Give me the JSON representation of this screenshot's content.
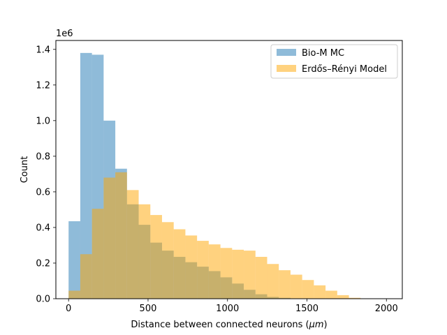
{
  "chart_data": {
    "type": "histogram",
    "title": "",
    "xlabel": "Distance between connected neurons (",
    "xlabel_mu": "μm",
    "xlabel_close": ")",
    "ylabel": "Count",
    "y_offset_label": "1e6",
    "xlim": [
      -80,
      2100
    ],
    "ylim": [
      0,
      1.45
    ],
    "x_ticks": [
      0,
      500,
      1000,
      1500,
      2000
    ],
    "x_tick_labels": [
      "0",
      "500",
      "1000",
      "1500",
      "2000"
    ],
    "y_ticks": [
      0.0,
      0.2,
      0.4,
      0.6,
      0.8,
      1.0,
      1.2,
      1.4
    ],
    "y_tick_labels": [
      "0.0",
      "0.2",
      "0.4",
      "0.6",
      "0.8",
      "1.0",
      "1.2",
      "1.4"
    ],
    "grid": false,
    "legend_position": "top-right",
    "series": [
      {
        "name": "Bio-M MC",
        "color": "#1f77b4",
        "alpha": 0.5,
        "bin_start": 0,
        "bin_width": 73.5,
        "values": [
          0.435,
          1.38,
          1.37,
          1.0,
          0.73,
          0.53,
          0.415,
          0.315,
          0.27,
          0.235,
          0.205,
          0.18,
          0.155,
          0.12,
          0.085,
          0.05,
          0.025,
          0.01,
          0.005,
          0.002,
          0.001,
          0.001,
          0.0005,
          0.0005,
          0.0002,
          0.0002,
          0.0001,
          0.0001,
          0.0001
        ]
      },
      {
        "name": "Erdős–Rényi Model",
        "color": "#ffa500",
        "alpha": 0.5,
        "bin_start": 0,
        "bin_width": 73.5,
        "values": [
          0.045,
          0.25,
          0.505,
          0.68,
          0.71,
          0.61,
          0.53,
          0.47,
          0.43,
          0.39,
          0.355,
          0.325,
          0.305,
          0.285,
          0.275,
          0.27,
          0.235,
          0.195,
          0.16,
          0.135,
          0.105,
          0.075,
          0.045,
          0.02,
          0.005,
          0.0,
          0.0,
          0.0,
          0.0
        ]
      }
    ]
  }
}
